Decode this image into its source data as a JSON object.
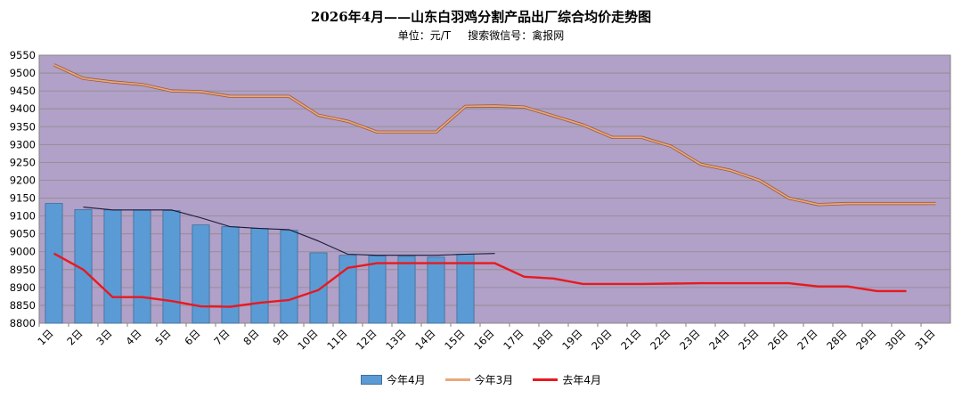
{
  "chart_data": {
    "type": "bar",
    "title": "2026年4月——山东白羽鸡分割产品出厂综合均价走势图",
    "subtitle": "单位：元/T     搜索微信号：禽报网",
    "x_labels": [
      "1日",
      "2日",
      "3日",
      "4日",
      "5日",
      "6日",
      "7日",
      "8日",
      "9日",
      "10日",
      "11日",
      "12日",
      "13日",
      "14日",
      "15日",
      "16日",
      "17日",
      "18日",
      "19日",
      "20日",
      "21日",
      "22日",
      "23日",
      "24日",
      "25日",
      "26日",
      "27日",
      "28日",
      "29日",
      "30日",
      "31日"
    ],
    "ylim": [
      8800,
      9550
    ],
    "y_ticks": [
      8800,
      8850,
      8900,
      8950,
      9000,
      9050,
      9100,
      9150,
      9200,
      9250,
      9300,
      9350,
      9400,
      9450,
      9500,
      9550
    ],
    "grid": true,
    "legend_position": "bottom",
    "series": [
      {
        "name": "今年4月",
        "kind": "bar",
        "color": "#5b9bd5",
        "values": [
          9135,
          9118,
          9117,
          9117,
          9115,
          9075,
          9070,
          9065,
          9060,
          8997,
          8990,
          8988,
          8987,
          8985,
          8993
        ]
      },
      {
        "name": "今年3月",
        "kind": "line",
        "color": "#e8a87c",
        "values": [
          9523,
          9485,
          9475,
          9468,
          9450,
          9448,
          9435,
          9435,
          9435,
          9382,
          9365,
          9335,
          9335,
          9335,
          9407,
          9408,
          9405,
          9380,
          9355,
          9320,
          9320,
          9295,
          9245,
          9228,
          9200,
          9150,
          9132,
          9135,
          9135,
          9135,
          9135
        ]
      },
      {
        "name": "去年4月",
        "kind": "line",
        "color": "#e8191f",
        "values": [
          8995,
          8950,
          8873,
          8873,
          8862,
          8847,
          8846,
          8857,
          8865,
          8893,
          8955,
          8968,
          8968,
          8968,
          8968,
          8968,
          8930,
          8925,
          8910,
          8910,
          8910,
          8911,
          8912,
          8912,
          8912,
          8912,
          8903,
          8903,
          8890,
          8890
        ]
      }
    ],
    "trendline": {
      "color": "#1a1a3a",
      "values": [
        null,
        9125,
        9117,
        9117,
        9117,
        9095,
        9070,
        9065,
        9062,
        9030,
        8993,
        8990,
        8990,
        8990,
        8993,
        8995
      ]
    }
  }
}
